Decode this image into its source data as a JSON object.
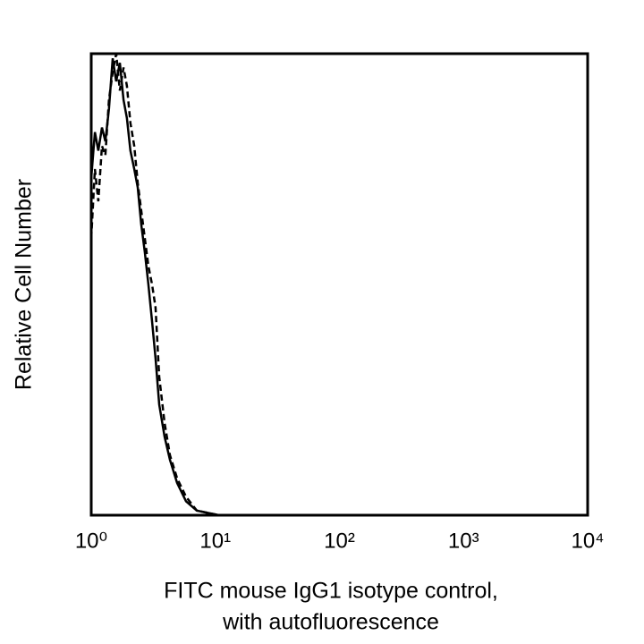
{
  "chart_data": {
    "type": "line",
    "xlabel": [
      "FITC mouse IgG1 isotype control,",
      "with autofluorescence"
    ],
    "ylabel": "Relative Cell Number",
    "x_scale": "log",
    "xlim": [
      1,
      10000
    ],
    "xticks": [
      {
        "value": 1,
        "label": "10⁰"
      },
      {
        "value": 10,
        "label": "10¹"
      },
      {
        "value": 100,
        "label": "10²"
      },
      {
        "value": 1000,
        "label": "10³"
      },
      {
        "value": 10000,
        "label": "10⁴"
      }
    ],
    "ylim": [
      0,
      100
    ],
    "grid": false,
    "x": [
      1.0,
      1.07,
      1.14,
      1.22,
      1.3,
      1.39,
      1.49,
      1.59,
      1.7,
      1.82,
      1.94,
      2.07,
      2.22,
      2.37,
      2.53,
      2.7,
      2.89,
      3.09,
      3.3,
      3.53,
      3.9,
      4.31,
      4.92,
      5.81,
      7.09,
      10.7
    ],
    "series": [
      {
        "color": "#000000",
        "line_style": "solid",
        "values": [
          73,
          83,
          79,
          84,
          81,
          88,
          99,
          94,
          98,
          90,
          86,
          79,
          75,
          71,
          63,
          57,
          50,
          42,
          34,
          24,
          17,
          12,
          7,
          3,
          1,
          0
        ]
      },
      {
        "color": "#000000",
        "line_style": "dashed",
        "values": [
          60,
          75,
          68,
          80,
          78,
          90,
          96,
          100,
          92,
          97,
          93,
          85,
          80,
          72,
          66,
          60,
          54,
          50,
          45,
          30,
          20,
          13,
          8,
          4,
          1,
          0
        ]
      }
    ]
  }
}
